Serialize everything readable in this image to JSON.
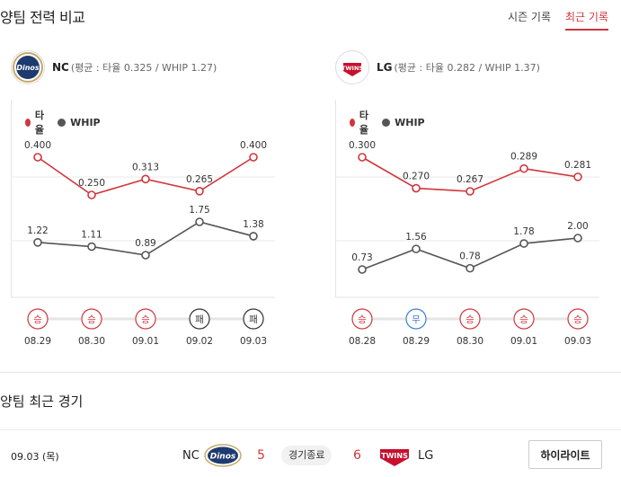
{
  "header": {
    "title": "양팀 전력 비교",
    "tabs": [
      {
        "label": "시즌 기록",
        "active": false
      },
      {
        "label": "최근 기록",
        "active": true
      }
    ]
  },
  "colors": {
    "avg": "#d0363c",
    "whip": "#555555",
    "win": "#d0363c",
    "draw": "#3b7dd8",
    "loss": "#333333"
  },
  "teams": [
    {
      "name": "NC",
      "summary": "(평균 : 타율 0.325 / WHIP 1.27)",
      "logo_text": "Dinos",
      "logo_icon": "nc-dinos-logo-icon"
    },
    {
      "name": "LG",
      "summary": "(평균 : 타율 0.282 / WHIP 1.37)",
      "logo_text": "TWINS",
      "logo_icon": "lg-twins-logo-icon"
    }
  ],
  "legend": {
    "avg": "타율",
    "whip": "WHIP"
  },
  "chart_data": [
    {
      "type": "line",
      "team": "NC",
      "x": [
        "08.29",
        "08.30",
        "09.01",
        "09.02",
        "09.03"
      ],
      "series": [
        {
          "name": "타율",
          "values": [
            0.4,
            0.25,
            0.313,
            0.265,
            0.4
          ],
          "labels": [
            "0.400",
            "0.250",
            "0.313",
            "0.265",
            "0.400"
          ]
        },
        {
          "name": "WHIP",
          "values": [
            1.22,
            1.11,
            0.89,
            1.75,
            1.38
          ],
          "labels": [
            "1.22",
            "1.11",
            "0.89",
            "1.75",
            "1.38"
          ]
        }
      ],
      "results": [
        "승",
        "승",
        "승",
        "패",
        "패"
      ],
      "result_types": [
        "win",
        "win",
        "win",
        "loss",
        "loss"
      ]
    },
    {
      "type": "line",
      "team": "LG",
      "x": [
        "08.28",
        "08.29",
        "08.30",
        "09.01",
        "09.03"
      ],
      "series": [
        {
          "name": "타율",
          "values": [
            0.3,
            0.27,
            0.267,
            0.289,
            0.281
          ],
          "labels": [
            "0.300",
            "0.270",
            "0.267",
            "0.289",
            "0.281"
          ]
        },
        {
          "name": "WHIP",
          "values": [
            0.73,
            1.56,
            0.78,
            1.78,
            2.0
          ],
          "labels": [
            "0.73",
            "1.56",
            "0.78",
            "1.78",
            "2.00"
          ]
        }
      ],
      "results": [
        "승",
        "무",
        "승",
        "승",
        "승"
      ],
      "result_types": [
        "win",
        "draw",
        "win",
        "win",
        "win"
      ]
    }
  ],
  "recent": {
    "title": "양팀 최근 경기",
    "game": {
      "date": "09.03 (목)",
      "away": "NC",
      "away_score": "5",
      "status": "경기종료",
      "home_score": "6",
      "home": "LG",
      "highlight_label": "하이라이트"
    }
  }
}
